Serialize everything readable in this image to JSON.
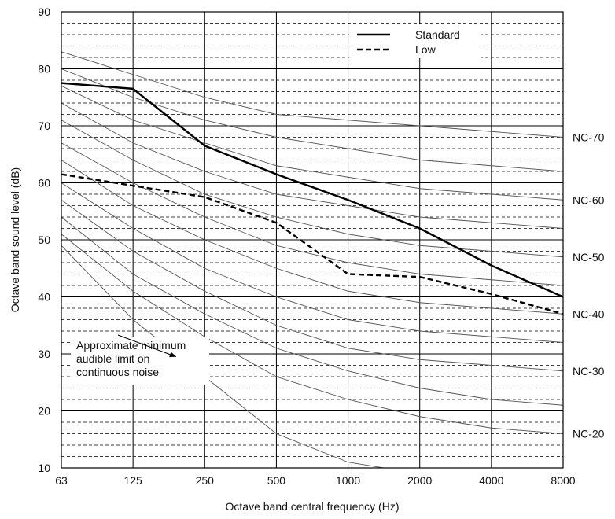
{
  "chart_data": {
    "type": "line",
    "xlabel": "Octave band central frequency (Hz)",
    "ylabel": "Octave band sound level (dB)",
    "x_categories": [
      "63",
      "125",
      "250",
      "500",
      "1000",
      "2000",
      "4000",
      "8000"
    ],
    "y_ticks": [
      "10",
      "20",
      "30",
      "40",
      "50",
      "60",
      "70",
      "80",
      "90"
    ],
    "ylim": [
      10,
      90
    ],
    "grid": {
      "major_step": 10,
      "minor_step": 2
    },
    "legend_position": "top-right",
    "series": [
      {
        "name": "Standard",
        "style": "solid",
        "values": [
          77.5,
          76.5,
          66.5,
          61.5,
          57,
          52,
          45.5,
          40
        ]
      },
      {
        "name": "Low",
        "style": "dashed",
        "values": [
          61.5,
          59.5,
          57.5,
          53,
          44,
          43.5,
          40.5,
          37
        ]
      }
    ],
    "nc_curves": [
      {
        "label": "",
        "values": [
          49,
          36,
          26,
          16,
          11,
          9,
          8,
          7
        ]
      },
      {
        "label": "NC-20",
        "values": [
          51,
          41,
          33,
          26,
          22,
          19,
          17,
          16
        ]
      },
      {
        "label": "",
        "values": [
          54,
          44,
          37,
          31,
          27,
          24,
          22,
          21
        ]
      },
      {
        "label": "NC-30",
        "values": [
          57,
          48,
          41,
          35,
          31,
          29,
          28,
          27
        ]
      },
      {
        "label": "",
        "values": [
          60,
          52,
          45,
          40,
          36,
          34,
          33,
          32
        ]
      },
      {
        "label": "NC-40",
        "values": [
          64,
          56,
          50,
          45,
          41,
          39,
          38,
          37
        ]
      },
      {
        "label": "",
        "values": [
          67,
          60,
          54,
          49,
          46,
          44,
          43,
          42
        ]
      },
      {
        "label": "NC-50",
        "values": [
          71,
          64,
          58,
          54,
          51,
          49,
          48,
          47
        ]
      },
      {
        "label": "",
        "values": [
          74,
          67,
          62,
          58,
          56,
          54,
          53,
          52
        ]
      },
      {
        "label": "NC-60",
        "values": [
          77,
          71,
          67,
          63,
          61,
          59,
          58,
          57
        ]
      },
      {
        "label": "",
        "values": [
          80,
          75,
          71,
          68,
          66,
          64,
          63,
          62
        ]
      },
      {
        "label": "NC-70",
        "values": [
          83,
          79,
          75,
          72,
          71,
          70,
          69,
          68
        ]
      }
    ],
    "annotation": {
      "lines": [
        "Approximate minimum",
        "audible limit on",
        "continuous noise"
      ],
      "target": {
        "x": 1.6,
        "y": 29.5
      }
    },
    "colors": {
      "data_lines": "#000000",
      "nc_lines": "#555555",
      "grid": "#000000"
    }
  }
}
